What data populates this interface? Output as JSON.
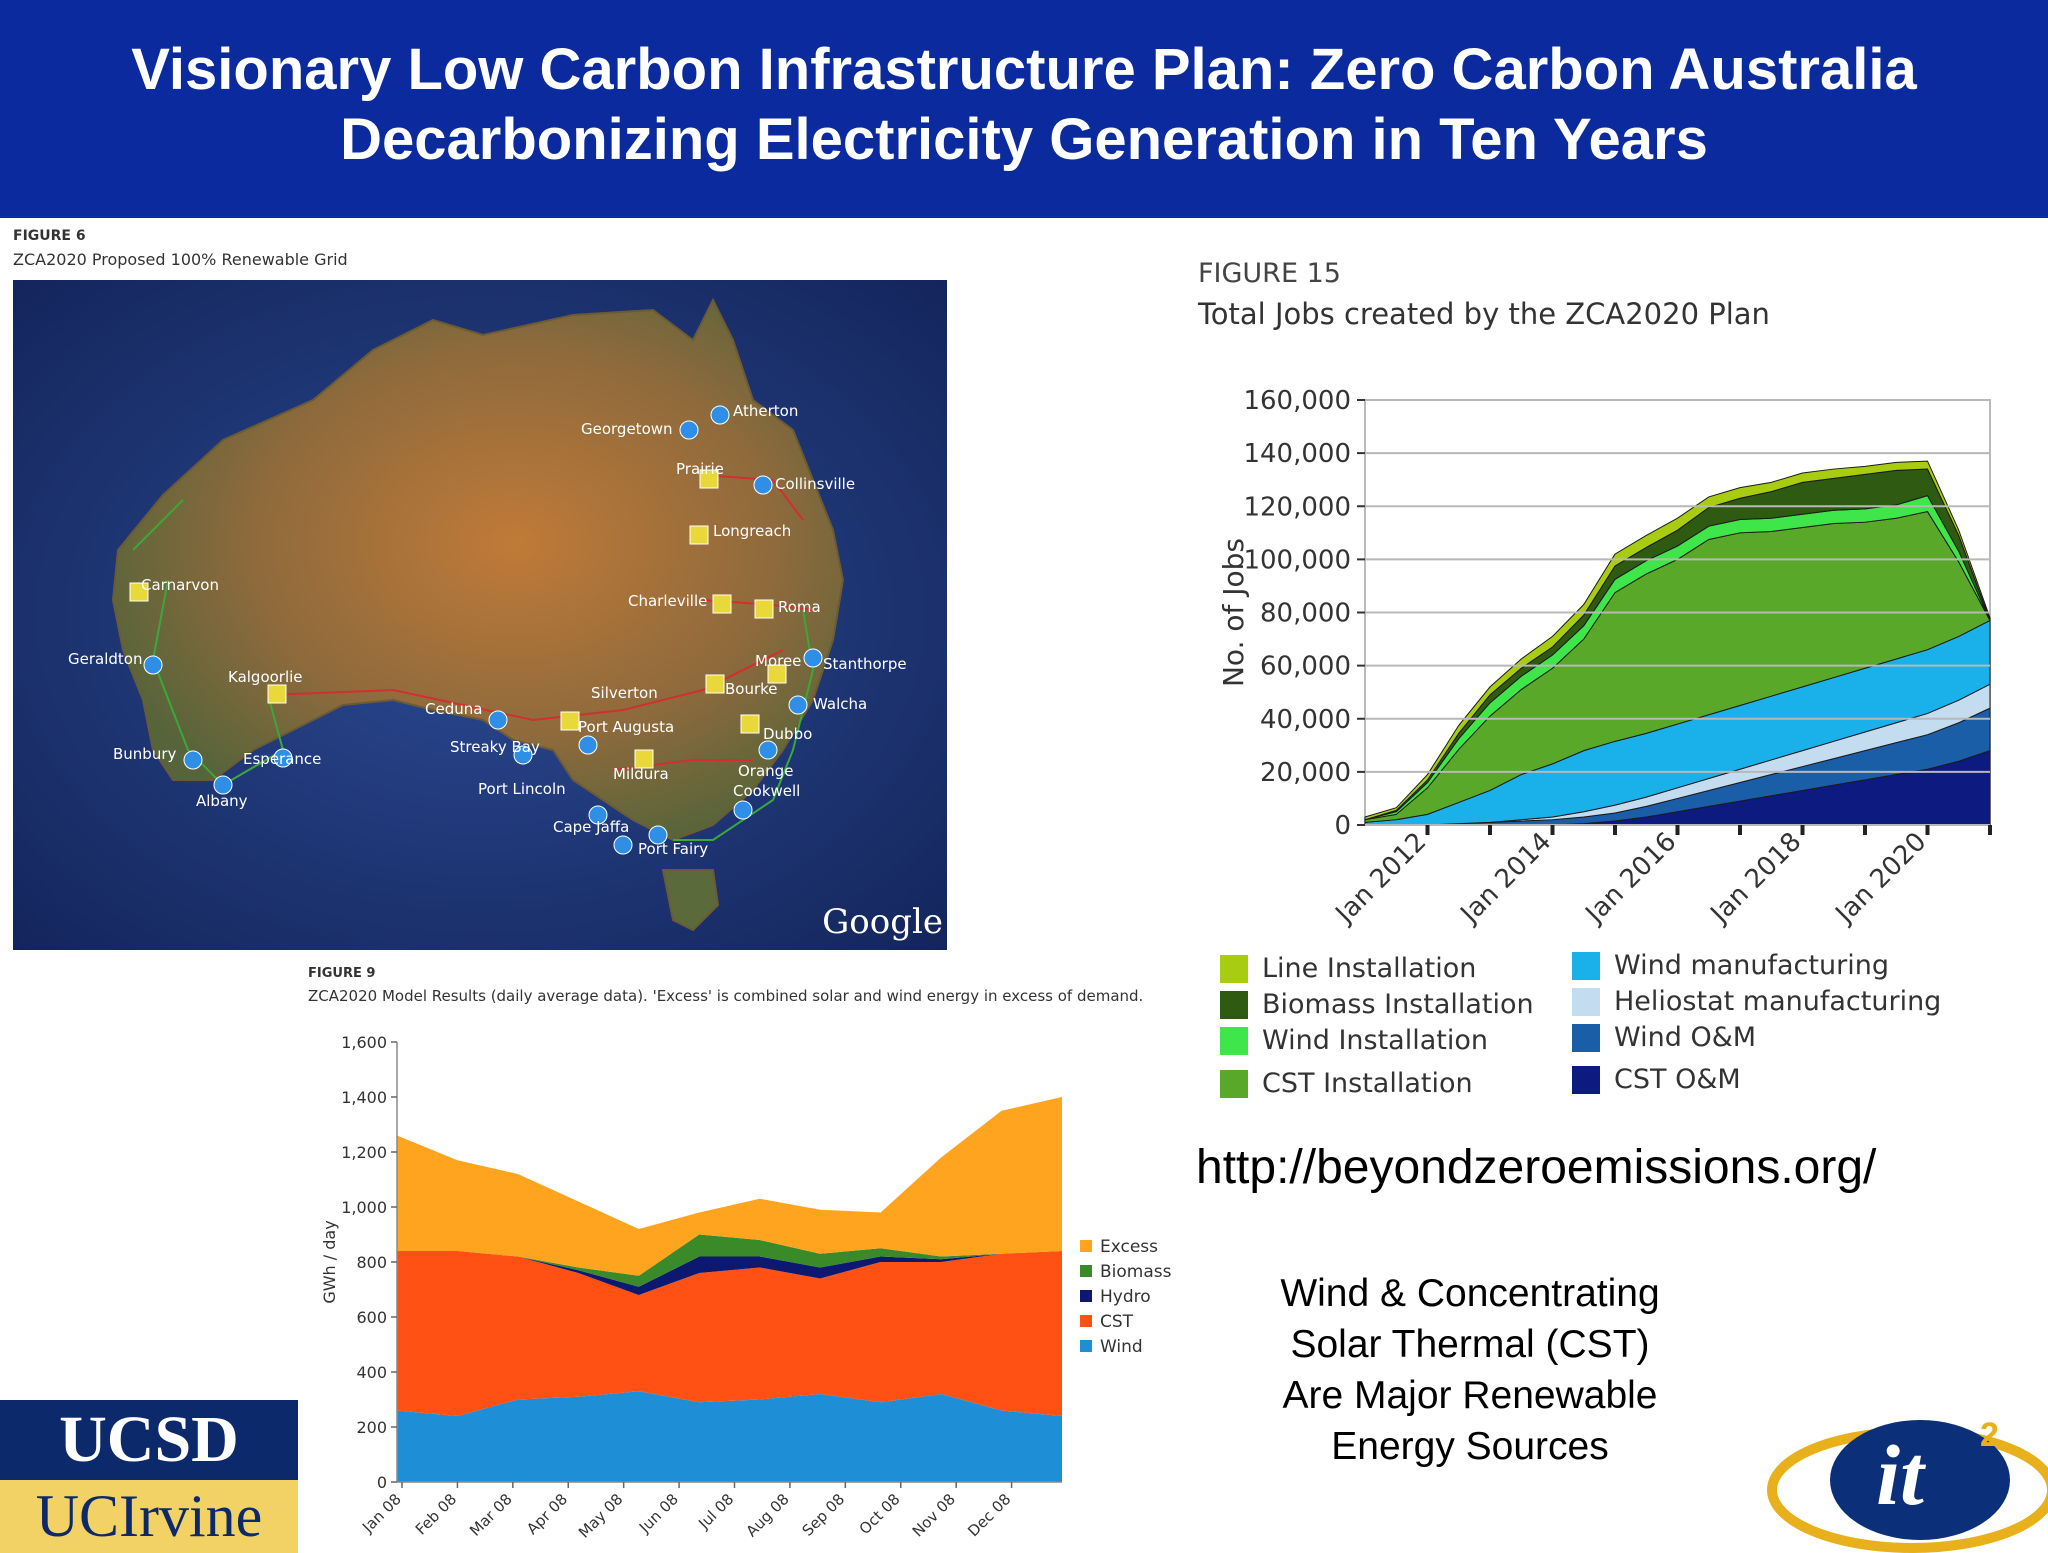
{
  "banner": {
    "line1": "Visionary Low Carbon Infrastructure Plan:  Zero Carbon Australia",
    "line2": "Decarbonizing Electricity Generation in Ten Years"
  },
  "map_figure": {
    "label": "FIGURE 6",
    "title": "ZCA2020 Proposed 100% Renewable Grid",
    "watermark": "Google",
    "places": [
      "Atherton",
      "Georgetown",
      "Prairie",
      "Collinsville",
      "Longreach",
      "Carnarvon",
      "Charleville",
      "Roma",
      "Geraldton",
      "Kalgoorlie",
      "Moree",
      "Stanthorpe",
      "Silverton",
      "Bourke",
      "Walcha",
      "Ceduna",
      "Port Augusta",
      "Dubbo",
      "Streaky Bay",
      "Bunbury",
      "Esperance",
      "Mildura",
      "Orange",
      "Port Lincoln",
      "Cookwell",
      "Albany",
      "Cape Jaffa",
      "Port Fairy"
    ]
  },
  "figure15": {
    "label": "FIGURE 15",
    "title": "Total Jobs created by the ZCA2020 Plan"
  },
  "figure9": {
    "label": "FIGURE 9",
    "title": "ZCA2020 Model Results (daily average data). 'Excess' is combined solar and wind energy in excess of demand."
  },
  "url": "http://beyondzeroemissions.org/",
  "blurb": [
    "Wind & Concentrating",
    "Solar Thermal (CST)",
    "Are Major Renewable",
    "Energy Sources"
  ],
  "logos": {
    "ucsd": "UCSD",
    "ucirvine": "UCIrvine",
    "it2": "it",
    "it2_sup": "2"
  },
  "colors": {
    "banner": "#0a2a9e"
  },
  "chart_data": [
    {
      "type": "area",
      "title": "Total Jobs created by the ZCA2020 Plan",
      "ylabel": "No. of Jobs",
      "xlabel": "",
      "ylim": [
        0,
        160000
      ],
      "yticks": [
        "0",
        "20,000",
        "40,000",
        "60,000",
        "80,000",
        "100,000",
        "120,000",
        "140,000",
        "160,000"
      ],
      "xticks": [
        "Jan 2012",
        "Jan 2014",
        "Jan 2016",
        "Jan 2018",
        "Jan 2020"
      ],
      "grid": true,
      "legend_position": "bottom",
      "x": [
        "Jan 2011",
        "Jul 2011",
        "Jan 2012",
        "Jul 2012",
        "Jan 2013",
        "Jul 2013",
        "Jan 2014",
        "Jul 2014",
        "Jan 2015",
        "Jul 2015",
        "Jan 2016",
        "Jul 2016",
        "Jan 2017",
        "Jul 2017",
        "Jan 2018",
        "Jul 2018",
        "Jan 2019",
        "Jul 2019",
        "Jan 2020",
        "Jul 2020",
        "Jan 2021"
      ],
      "series": [
        {
          "name": "CST O&M",
          "color": "#0d1a80",
          "values": [
            0,
            0,
            0,
            0,
            0,
            0,
            0,
            500,
            1500,
            3000,
            5000,
            7000,
            9000,
            11000,
            13000,
            15000,
            17000,
            19000,
            21000,
            24000,
            28000
          ]
        },
        {
          "name": "Wind O&M",
          "color": "#1a5ea8",
          "values": [
            0,
            0,
            0,
            500,
            1000,
            1500,
            2000,
            2500,
            3000,
            4000,
            5000,
            6000,
            7000,
            8000,
            9000,
            10000,
            11000,
            12000,
            13000,
            14500,
            16000
          ]
        },
        {
          "name": "Heliostat manufacturing",
          "color": "#c4dcf0",
          "values": [
            0,
            0,
            0,
            0,
            0,
            500,
            1000,
            2000,
            3000,
            3500,
            4000,
            4500,
            5000,
            5500,
            6000,
            6500,
            7000,
            7500,
            8000,
            8500,
            9000
          ]
        },
        {
          "name": "Wind manufacturing",
          "color": "#1ab0ea",
          "values": [
            1000,
            2000,
            4000,
            8000,
            12000,
            17000,
            20000,
            23000,
            24000,
            24000,
            24000,
            24000,
            24000,
            24000,
            24000,
            24000,
            24000,
            24000,
            24000,
            24000,
            24000
          ]
        },
        {
          "name": "CST Installation",
          "color": "#5aa82a",
          "values": [
            1000,
            2000,
            10000,
            20000,
            28000,
            32000,
            36000,
            42000,
            56000,
            60000,
            62000,
            66000,
            65000,
            62000,
            60000,
            58000,
            55000,
            53000,
            52000,
            28000,
            0
          ]
        },
        {
          "name": "Wind Installation",
          "color": "#3ee64a",
          "values": [
            0,
            1000,
            2000,
            4000,
            5000,
            5000,
            5000,
            5000,
            5000,
            5000,
            5000,
            5000,
            5000,
            5000,
            5000,
            5000,
            5000,
            5000,
            6000,
            4000,
            0
          ]
        },
        {
          "name": "Biomass Installation",
          "color": "#2e5a12",
          "values": [
            0,
            500,
            1000,
            2000,
            3000,
            3000,
            3000,
            4000,
            5000,
            5000,
            6000,
            7000,
            8000,
            10000,
            12000,
            12000,
            13000,
            13000,
            10000,
            6000,
            0
          ]
        },
        {
          "name": "Line Installation",
          "color": "#a8cc10",
          "values": [
            1000,
            1000,
            2000,
            3000,
            3000,
            3500,
            4000,
            4000,
            4500,
            4500,
            4500,
            4000,
            4000,
            3500,
            3500,
            3500,
            3000,
            3000,
            3000,
            2000,
            1000
          ]
        }
      ]
    },
    {
      "type": "area",
      "title": "ZCA2020 Model Results (daily average data). 'Excess' is combined solar and wind energy in excess of demand.",
      "ylabel": "GWh / day",
      "xlabel": "",
      "ylim": [
        0,
        1600
      ],
      "yticks": [
        "0",
        "200",
        "400",
        "600",
        "800",
        "1,000",
        "1,200",
        "1,400",
        "1,600"
      ],
      "xticks": [
        "Jan 08",
        "Feb 08",
        "Mar 08",
        "Apr 08",
        "May 08",
        "Jun 08",
        "Jul 08",
        "Aug 08",
        "Sep 08",
        "Oct 08",
        "Nov 08",
        "Dec 08"
      ],
      "grid": false,
      "legend_position": "right",
      "x": [
        "Jan 08",
        "Feb 08",
        "Mar 08",
        "Apr 08",
        "May 08",
        "Jun 08",
        "Jul 08",
        "Aug 08",
        "Sep 08",
        "Oct 08",
        "Nov 08",
        "Dec 08"
      ],
      "series": [
        {
          "name": "Wind",
          "color": "#1e8fd6",
          "values": [
            260,
            240,
            300,
            310,
            330,
            290,
            300,
            320,
            290,
            320,
            260,
            240
          ]
        },
        {
          "name": "CST",
          "color": "#ff5114",
          "values": [
            580,
            600,
            520,
            450,
            350,
            470,
            480,
            420,
            510,
            480,
            570,
            600
          ]
        },
        {
          "name": "Hydro",
          "color": "#0d1870",
          "values": [
            0,
            0,
            0,
            10,
            30,
            60,
            40,
            40,
            20,
            10,
            0,
            0
          ]
        },
        {
          "name": "Biomass",
          "color": "#3a8a2a",
          "values": [
            0,
            0,
            0,
            10,
            40,
            80,
            60,
            50,
            30,
            10,
            0,
            0
          ]
        },
        {
          "name": "Excess",
          "color": "#ffa41e",
          "values": [
            420,
            330,
            300,
            240,
            170,
            80,
            150,
            160,
            130,
            360,
            520,
            560
          ]
        }
      ]
    }
  ]
}
